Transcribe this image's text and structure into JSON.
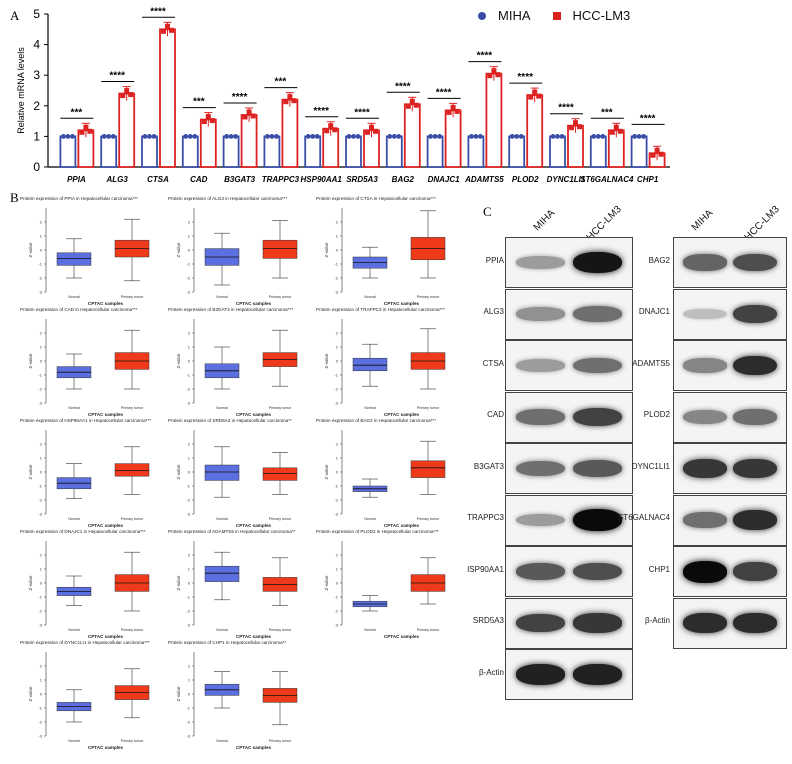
{
  "panel_labels": {
    "a": "A",
    "b": "B",
    "c": "C"
  },
  "legend": {
    "miha": "MIHA",
    "hcc": "HCC-LM3",
    "miha_color": "#3a4ea8",
    "hcc_color": "#dd2222"
  },
  "chart_data": {
    "type": "bar",
    "ylabel": "Relative mRNA levels",
    "ylim": [
      0,
      5
    ],
    "yticks": [
      "0",
      "1",
      "2",
      "3",
      "4",
      "5"
    ],
    "categories": [
      "PPIA",
      "ALG3",
      "CTSA",
      "CAD",
      "B3GAT3",
      "TRAPPC3",
      "HSP90AA1",
      "SRD5A3",
      "BAG2",
      "DNAJC1",
      "ADAMTS5",
      "PLOD2",
      "DYNC1LI1",
      "ST6GALNAC4",
      "CHP1"
    ],
    "significance": [
      "***",
      "****",
      "****",
      "***",
      "****",
      "***",
      "****",
      "****",
      "****",
      "****",
      "****",
      "****",
      "****",
      "***",
      "****"
    ],
    "series": [
      {
        "name": "MIHA",
        "values": [
          1,
          1,
          1,
          1,
          1,
          1,
          1,
          1,
          1,
          1,
          1,
          1,
          1,
          1,
          1
        ]
      },
      {
        "name": "HCC-LM3",
        "values": [
          1.2,
          2.4,
          4.5,
          1.55,
          1.7,
          2.2,
          1.25,
          1.2,
          2.05,
          1.85,
          3.05,
          2.35,
          1.35,
          1.2,
          0.45
        ]
      }
    ]
  },
  "boxplots": {
    "xlabel": "CPTAC samples",
    "ylabel": "Z-value",
    "normal_label": "Normal",
    "tumor_label": "Primary tumor",
    "normal_color": "#5b6fe0",
    "tumor_color": "#ee3a1b",
    "panels": [
      {
        "title": "Protein expression of PPIA in Hepatocellular carcinoma***",
        "ticks": [
          "2",
          "1",
          "0",
          "-1",
          "-2",
          "-3"
        ],
        "normal": {
          "wl": -2.0,
          "q1": -1.1,
          "med": -0.6,
          "q3": -0.2,
          "wh": 0.8
        },
        "tumor": {
          "wl": -2.2,
          "q1": -0.5,
          "med": 0.1,
          "q3": 0.7,
          "wh": 2.2
        }
      },
      {
        "title": "Protein expression of ALG3 in Hepatocellular carcinoma***",
        "ticks": [
          "2",
          "1",
          "0",
          "-1",
          "-2",
          "-3"
        ],
        "normal": {
          "wl": -2.5,
          "q1": -1.1,
          "med": -0.5,
          "q3": 0.1,
          "wh": 1.2
        },
        "tumor": {
          "wl": -2.0,
          "q1": -0.6,
          "med": 0.1,
          "q3": 0.7,
          "wh": 2.1
        }
      },
      {
        "title": "Protein expression of CTSA in Hepatocellular carcinoma***",
        "ticks": [
          "2",
          "1",
          "0",
          "-1",
          "-2",
          "-3"
        ],
        "normal": {
          "wl": -2.0,
          "q1": -1.3,
          "med": -0.9,
          "q3": -0.5,
          "wh": 0.2
        },
        "tumor": {
          "wl": -2.0,
          "q1": -0.7,
          "med": 0.1,
          "q3": 0.9,
          "wh": 2.8
        }
      },
      {
        "title": "Protein expression of CAD in Hepatocellular carcinoma***",
        "ticks": [
          "2",
          "1",
          "0",
          "-1",
          "-2",
          "-3"
        ],
        "normal": {
          "wl": -2.0,
          "q1": -1.2,
          "med": -0.8,
          "q3": -0.4,
          "wh": 0.5
        },
        "tumor": {
          "wl": -2.0,
          "q1": -0.6,
          "med": 0.0,
          "q3": 0.6,
          "wh": 2.2
        }
      },
      {
        "title": "Protein expression of B3GAT3 in Hepatocellular carcinoma***",
        "ticks": [
          "2",
          "1",
          "0",
          "-1",
          "-2",
          "-3"
        ],
        "normal": {
          "wl": -2.0,
          "q1": -1.2,
          "med": -0.7,
          "q3": -0.2,
          "wh": 1.0
        },
        "tumor": {
          "wl": -1.8,
          "q1": -0.4,
          "med": 0.1,
          "q3": 0.6,
          "wh": 2.2
        }
      },
      {
        "title": "Protein expression of TRAPPC3 in Hepatocellular carcinoma***",
        "ticks": [
          "2",
          "1",
          "0",
          "-1",
          "-2",
          "-3"
        ],
        "normal": {
          "wl": -1.8,
          "q1": -0.7,
          "med": -0.3,
          "q3": 0.2,
          "wh": 1.2
        },
        "tumor": {
          "wl": -2.0,
          "q1": -0.6,
          "med": 0.0,
          "q3": 0.6,
          "wh": 2.3
        }
      },
      {
        "title": "Protein expression of HSP90AA1 in Hepatocellular carcinoma***",
        "ticks": [
          "2",
          "1",
          "0",
          "-1",
          "-2",
          "-3"
        ],
        "normal": {
          "wl": -1.9,
          "q1": -1.2,
          "med": -0.8,
          "q3": -0.4,
          "wh": 0.6
        },
        "tumor": {
          "wl": -1.6,
          "q1": -0.3,
          "med": 0.1,
          "q3": 0.6,
          "wh": 1.8
        }
      },
      {
        "title": "Protein expression of SRD5A3 in Hepatocellular carcinoma**",
        "ticks": [
          "2",
          "1",
          "0",
          "-1",
          "-2",
          "-3"
        ],
        "normal": {
          "wl": -1.8,
          "q1": -0.6,
          "med": 0.0,
          "q3": 0.5,
          "wh": 1.8
        },
        "tumor": {
          "wl": -1.6,
          "q1": -0.6,
          "med": -0.1,
          "q3": 0.3,
          "wh": 1.4
        }
      },
      {
        "title": "Protein expression of BAG2 in Hepatocellular carcinoma***",
        "ticks": [
          "2",
          "1",
          "0",
          "-1",
          "-2",
          "-3"
        ],
        "normal": {
          "wl": -1.8,
          "q1": -1.4,
          "med": -1.2,
          "q3": -1.0,
          "wh": -0.5
        },
        "tumor": {
          "wl": -1.6,
          "q1": -0.4,
          "med": 0.3,
          "q3": 0.8,
          "wh": 2.2
        }
      },
      {
        "title": "Protein expression of DNAJC1 in Hepatocellular carcinoma***",
        "ticks": [
          "2",
          "1",
          "0",
          "-1",
          "-2",
          "-3"
        ],
        "normal": {
          "wl": -1.6,
          "q1": -0.9,
          "med": -0.6,
          "q3": -0.3,
          "wh": 0.5
        },
        "tumor": {
          "wl": -2.0,
          "q1": -0.6,
          "med": 0.0,
          "q3": 0.6,
          "wh": 2.2
        }
      },
      {
        "title": "Protein expression of ADAMTS5 in Hepatocellular carcinoma**",
        "ticks": [
          "2",
          "1",
          "0",
          "-1",
          "-2",
          "-3"
        ],
        "normal": {
          "wl": -1.2,
          "q1": 0.1,
          "med": 0.7,
          "q3": 1.2,
          "wh": 2.2
        },
        "tumor": {
          "wl": -1.6,
          "q1": -0.6,
          "med": -0.1,
          "q3": 0.4,
          "wh": 1.8
        }
      },
      {
        "title": "Protein expression of PLOD2 in Hepatocellular carcinoma***",
        "ticks": [
          "2",
          "1",
          "0",
          "-1",
          "-2",
          "-3"
        ],
        "normal": {
          "wl": -2.0,
          "q1": -1.7,
          "med": -1.5,
          "q3": -1.3,
          "wh": -0.9
        },
        "tumor": {
          "wl": -1.5,
          "q1": -0.6,
          "med": 0.0,
          "q3": 0.6,
          "wh": 1.8
        }
      },
      {
        "title": "Protein expression of DYNC1LI1 in Hepatocellular carcinoma***",
        "ticks": [
          "2",
          "1",
          "0",
          "-1",
          "-2",
          "-3"
        ],
        "normal": {
          "wl": -2.0,
          "q1": -1.2,
          "med": -0.9,
          "q3": -0.6,
          "wh": 0.3
        },
        "tumor": {
          "wl": -1.7,
          "q1": -0.4,
          "med": 0.1,
          "q3": 0.6,
          "wh": 1.8
        }
      },
      {
        "title": "Protein expression of CHP1 in Hepatocellular carcinoma**",
        "ticks": [
          "2",
          "1",
          "0",
          "-1",
          "-2",
          "-3"
        ],
        "normal": {
          "wl": -1.0,
          "q1": -0.1,
          "med": 0.3,
          "q3": 0.7,
          "wh": 1.6
        },
        "tumor": {
          "wl": -2.2,
          "q1": -0.6,
          "med": -0.1,
          "q3": 0.4,
          "wh": 1.6
        }
      }
    ]
  },
  "western": {
    "lane_miha": "MIHA",
    "lane_hcc": "HCC-LM3",
    "left": [
      {
        "label": "PPIA",
        "miha": 0.35,
        "hcc": 0.95
      },
      {
        "label": "ALG3",
        "miha": 0.4,
        "hcc": 0.55
      },
      {
        "label": "CTSA",
        "miha": 0.35,
        "hcc": 0.55
      },
      {
        "label": "CAD",
        "miha": 0.55,
        "hcc": 0.75
      },
      {
        "label": "B3GAT3",
        "miha": 0.55,
        "hcc": 0.65
      },
      {
        "label": "TRAPPC3",
        "miha": 0.35,
        "hcc": 1.0
      },
      {
        "label": "ISP90AA1",
        "miha": 0.65,
        "hcc": 0.7
      },
      {
        "label": "SRD5A3",
        "miha": 0.75,
        "hcc": 0.8
      },
      {
        "label": "β-Actin",
        "miha": 0.9,
        "hcc": 0.9
      }
    ],
    "right": [
      {
        "label": "BAG2",
        "miha": 0.6,
        "hcc": 0.7
      },
      {
        "label": "DNAJC1",
        "miha": 0.2,
        "hcc": 0.75
      },
      {
        "label": "ADAMTS5",
        "miha": 0.45,
        "hcc": 0.85
      },
      {
        "label": "PLOD2",
        "miha": 0.45,
        "hcc": 0.55
      },
      {
        "label": "DYNC1LI1",
        "miha": 0.8,
        "hcc": 0.8
      },
      {
        "label": "ST6GALNAC4",
        "miha": 0.55,
        "hcc": 0.85
      },
      {
        "label": "CHP1",
        "miha": 1.0,
        "hcc": 0.75
      },
      {
        "label": "β-Actin",
        "miha": 0.85,
        "hcc": 0.85
      }
    ]
  }
}
